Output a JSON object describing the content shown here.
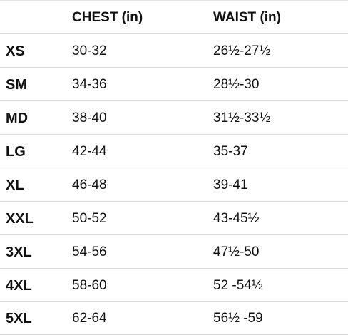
{
  "table": {
    "headers": {
      "size": "",
      "chest": "CHEST (in)",
      "waist": "WAIST (in)"
    },
    "rows": [
      {
        "size": "XS",
        "chest": "30-32",
        "waist": "26½-27½"
      },
      {
        "size": "SM",
        "chest": "34-36",
        "waist": "28½-30"
      },
      {
        "size": "MD",
        "chest": "38-40",
        "waist": "31½-33½"
      },
      {
        "size": "LG",
        "chest": "42-44",
        "waist": "35-37"
      },
      {
        "size": "XL",
        "chest": "46-48",
        "waist": "39-41"
      },
      {
        "size": "XXL",
        "chest": "50-52",
        "waist": "43-45½"
      },
      {
        "size": "3XL",
        "chest": "54-56",
        "waist": "47½-50"
      },
      {
        "size": "4XL",
        "chest": "58-60",
        "waist": "52 -54½"
      },
      {
        "size": "5XL",
        "chest": "62-64",
        "waist": "56½ -59"
      }
    ]
  }
}
